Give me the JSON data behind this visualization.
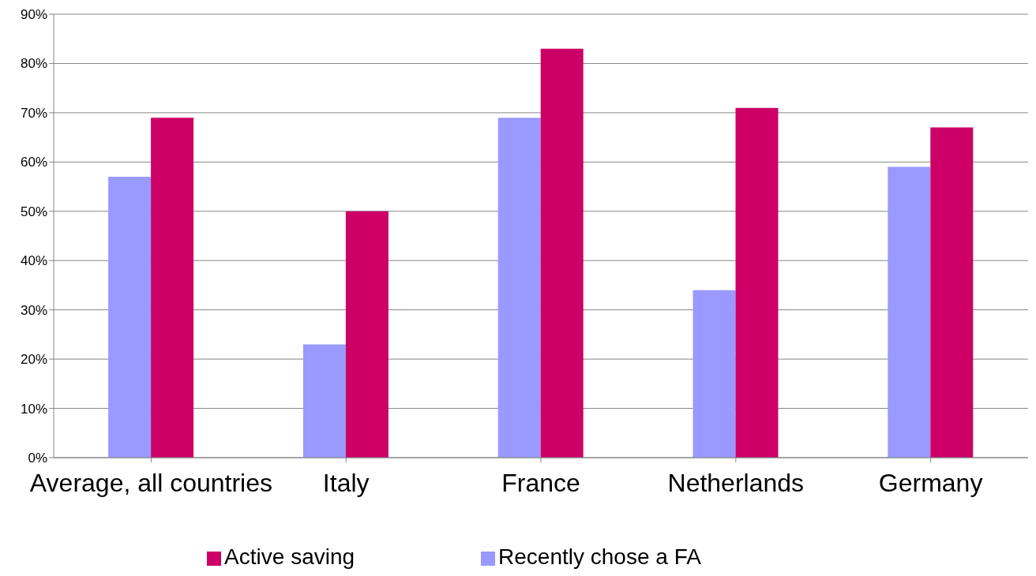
{
  "chart_data": {
    "type": "bar",
    "categories": [
      "Average, all countries",
      "Italy",
      "France",
      "Netherlands",
      "Germany"
    ],
    "series": [
      {
        "name": "Recently chose a FA",
        "color": "#9999ff",
        "values": [
          57,
          23,
          69,
          34,
          59
        ]
      },
      {
        "name": "Active saving",
        "color": "#cc0066",
        "values": [
          69,
          50,
          83,
          71,
          67
        ]
      }
    ],
    "ylim": [
      0,
      90
    ],
    "yticks": [
      {
        "value": 0,
        "label": "0%"
      },
      {
        "value": 10,
        "label": "10%"
      },
      {
        "value": 20,
        "label": "20%"
      },
      {
        "value": 30,
        "label": "30%"
      },
      {
        "value": 40,
        "label": "40%"
      },
      {
        "value": 50,
        "label": "50%"
      },
      {
        "value": 60,
        "label": "60%"
      },
      {
        "value": 70,
        "label": "70%"
      },
      {
        "value": 80,
        "label": "80%"
      },
      {
        "value": 90,
        "label": "90%"
      }
    ],
    "grid": "y",
    "legend": "bottom"
  }
}
